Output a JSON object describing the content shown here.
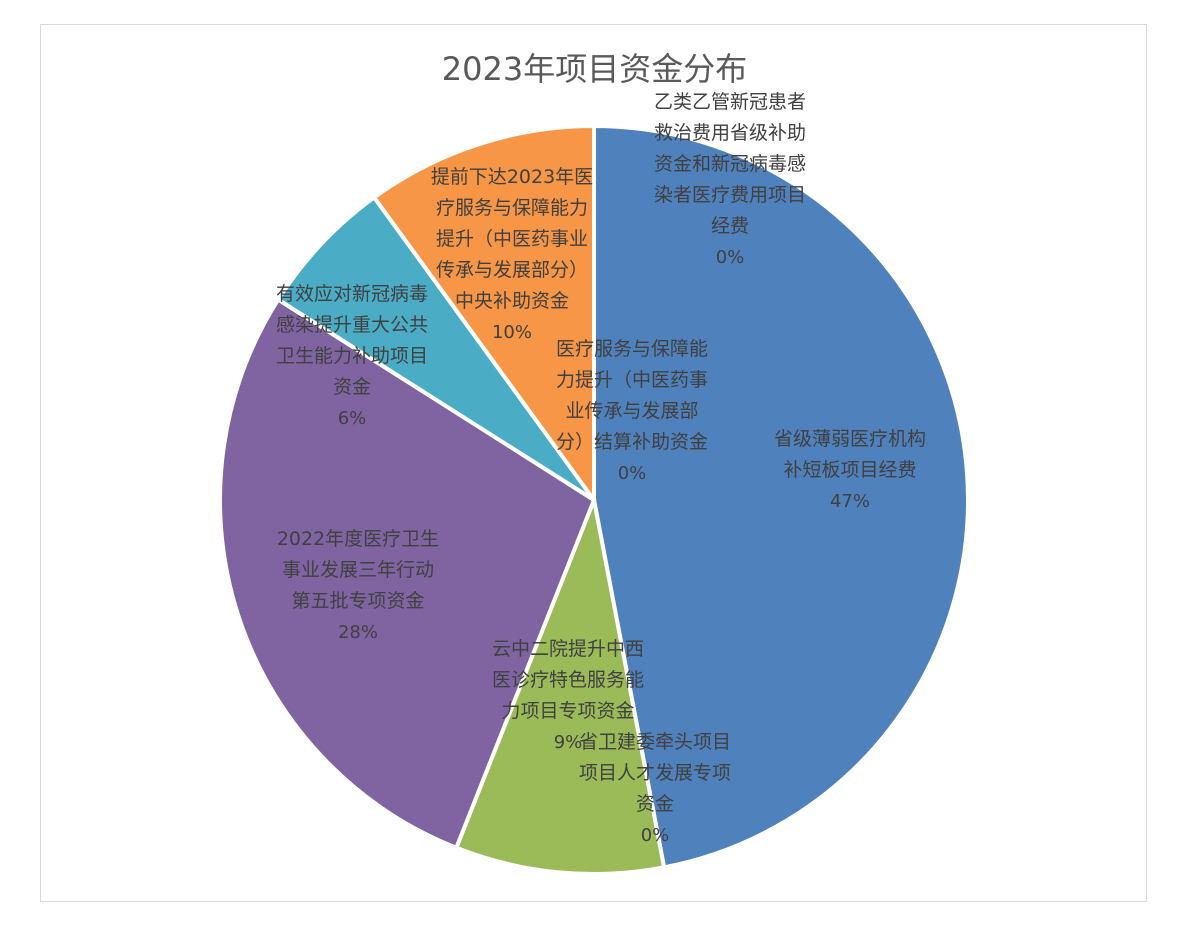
{
  "chart_data": {
    "type": "pie",
    "title": "2023年项目资金分布",
    "series": [
      {
        "name": "省级薄弱医疗机构补短板项目经费",
        "value": 47,
        "label": "47%",
        "color": "#4f81bd",
        "label_lines": [
          "省级薄弱医疗机构",
          "补短板项目经费"
        ]
      },
      {
        "name": "省卫建委牵头项目项目人才发展专项资金",
        "value": 0,
        "label": "0%",
        "color": "#9bbb59",
        "label_lines": [
          "省卫建委牵头项目",
          "项目人才发展专项",
          "资金"
        ]
      },
      {
        "name": "云中二院提升中西医诊疗特色服务能力项目专项资金",
        "value": 9,
        "label": "9%",
        "color": "#9bbb59",
        "label_lines": [
          "云中二院提升中西",
          "医诊疗特色服务能",
          "力项目专项资金"
        ]
      },
      {
        "name": "2022年度医疗卫生事业发展三年行动第五批专项资金",
        "value": 28,
        "label": "28%",
        "color": "#8064a2",
        "label_lines": [
          "2022年度医疗卫生",
          "事业发展三年行动",
          "第五批专项资金"
        ]
      },
      {
        "name": "有效应对新冠病毒感染提升重大公共卫生能力补助项目资金",
        "value": 6,
        "label": "6%",
        "color": "#4bacc6",
        "label_lines": [
          "有效应对新冠病毒",
          "感染提升重大公共",
          "卫生能力补助项目",
          "资金"
        ]
      },
      {
        "name": "提前下达2023年医疗服务与保障能力提升（中医药事业传承与发展部分）中央补助资金",
        "value": 10,
        "label": "10%",
        "color": "#f79646",
        "label_lines": [
          "提前下达2023年医",
          "疗服务与保障能力",
          "提升（中医药事业",
          "传承与发展部分）",
          "中央补助资金"
        ]
      },
      {
        "name": "医疗服务与保障能力提升（中医药事业传承与发展部分）结算补助资金",
        "value": 0,
        "label": "0%",
        "color": "#f79646",
        "label_lines": [
          "医疗服务与保障能",
          "力提升（中医药事",
          "业传承与发展部",
          "分）结算补助资金"
        ]
      },
      {
        "name": "乙类乙管新冠患者救治费用省级补助资金和新冠病毒感染者医疗费用项目经费",
        "value": 0,
        "label": "0%",
        "color": "#4f81bd",
        "label_lines": [
          "乙类乙管新冠患者",
          "救治费用省级补助",
          "资金和新冠病毒感",
          "染者医疗费用项目",
          "经费"
        ]
      }
    ]
  }
}
